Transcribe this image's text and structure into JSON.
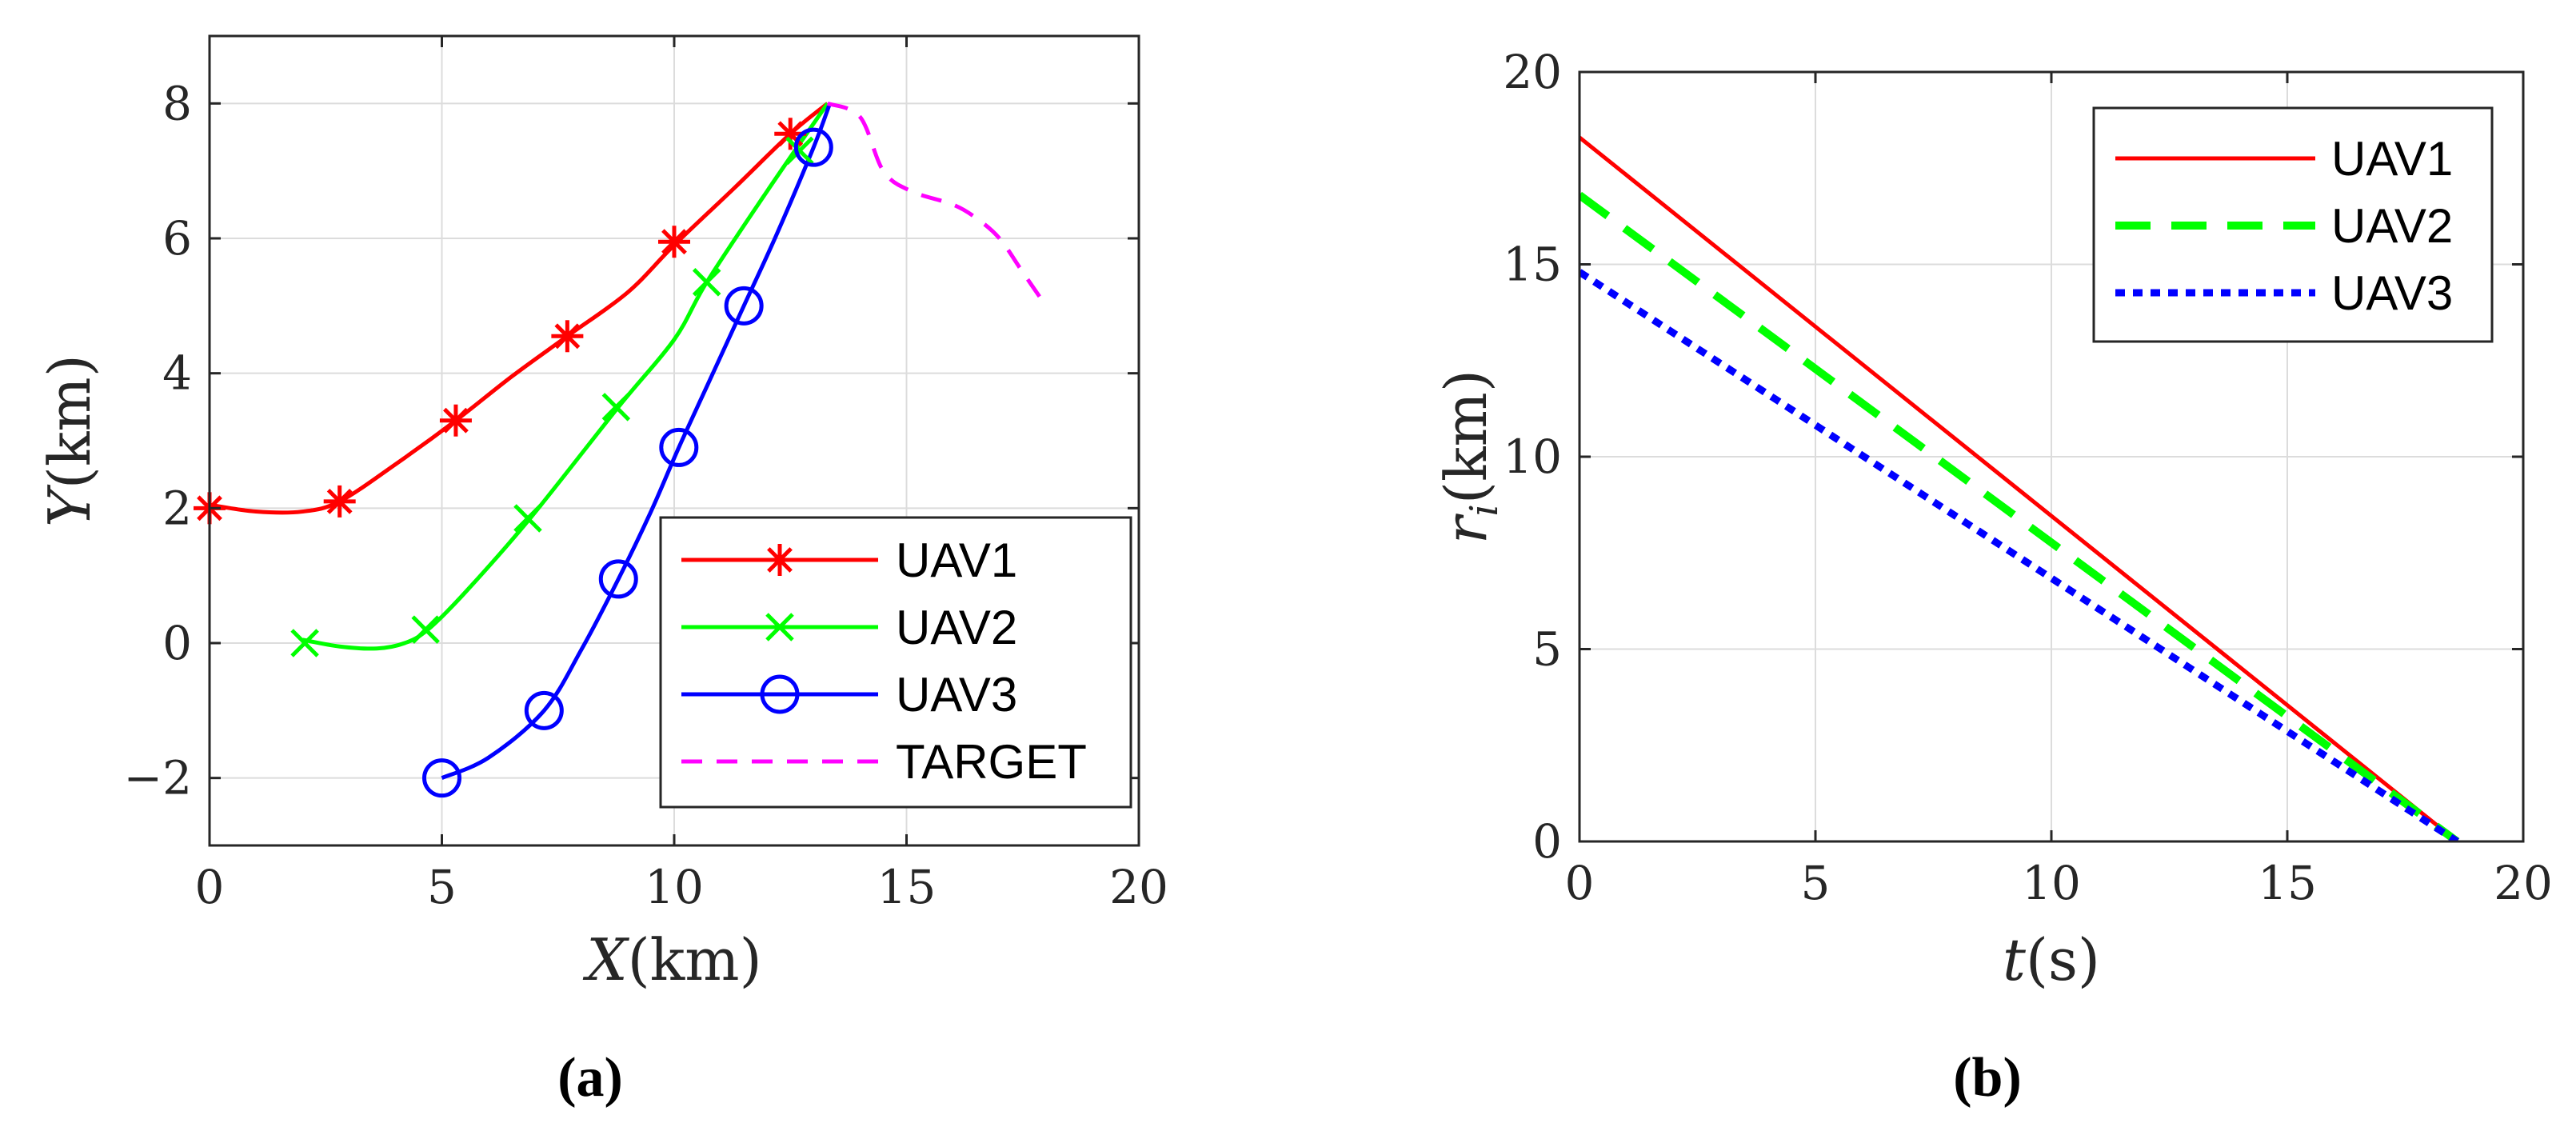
{
  "chart_data": [
    {
      "type": "line",
      "panel_label": "(a)",
      "xlabel": "X(km)",
      "ylabel": "Y(km)",
      "xlim": [
        0,
        20
      ],
      "ylim": [
        -3,
        9
      ],
      "xticks": [
        0,
        5,
        10,
        15,
        20
      ],
      "yticks": [
        -2,
        0,
        2,
        4,
        6,
        8
      ],
      "xtick_labels": [
        "0",
        "5",
        "10",
        "15",
        "20"
      ],
      "ytick_labels": [
        "−2",
        "0",
        "2",
        "4",
        "6",
        "8"
      ],
      "grid": true,
      "legend_position": "bottom-right",
      "series": [
        {
          "name": "UAV1",
          "color": "#ff0000",
          "style": "solid",
          "marker": "asterisk",
          "x": [
            0,
            1.0,
            2.0,
            2.8,
            4.0,
            5.3,
            6.5,
            7.7,
            9.0,
            10.0,
            11.3,
            12.5,
            13.3
          ],
          "y": [
            2.05,
            1.95,
            1.95,
            2.1,
            2.65,
            3.3,
            3.95,
            4.55,
            5.2,
            5.9,
            6.75,
            7.55,
            8.0
          ],
          "markers_x": [
            0,
            2.8,
            5.3,
            7.7,
            10.0,
            12.5
          ],
          "markers_y": [
            2.0,
            2.1,
            3.3,
            4.55,
            5.95,
            7.55
          ]
        },
        {
          "name": "UAV2",
          "color": "#00ff00",
          "style": "solid",
          "marker": "x",
          "x": [
            2.0,
            2.8,
            3.6,
            4.2,
            4.7,
            5.5,
            6.9,
            8.8,
            10.0,
            10.7,
            12.0,
            13.3
          ],
          "y": [
            0.05,
            -0.05,
            -0.08,
            0.0,
            0.2,
            0.75,
            1.85,
            3.5,
            4.5,
            5.35,
            6.7,
            8.0
          ],
          "markers_x": [
            2.05,
            4.65,
            6.85,
            8.75,
            10.7,
            12.7
          ],
          "markers_y": [
            0.0,
            0.2,
            1.85,
            3.5,
            5.35,
            7.3
          ]
        },
        {
          "name": "UAV3",
          "color": "#0000ff",
          "style": "solid",
          "marker": "circle",
          "x": [
            5.0,
            6.0,
            7.2,
            8.0,
            8.8,
            9.5,
            10.1,
            10.8,
            11.5,
            12.2,
            13.0,
            13.35
          ],
          "y": [
            -2.0,
            -1.7,
            -1.0,
            -0.1,
            0.95,
            1.95,
            2.9,
            3.95,
            5.0,
            6.05,
            7.35,
            8.0
          ],
          "markers_x": [
            5.0,
            7.2,
            8.8,
            10.1,
            11.5,
            13.0
          ],
          "markers_y": [
            -2.0,
            -1.0,
            0.95,
            2.9,
            5.0,
            7.35
          ]
        },
        {
          "name": "TARGET",
          "color": "#ff00ff",
          "style": "dashed",
          "marker": "none",
          "x": [
            13.3,
            14.0,
            14.5,
            15.1,
            16.0,
            16.5,
            17.0,
            17.5,
            18.0
          ],
          "y": [
            8.0,
            7.8,
            7.0,
            6.7,
            6.5,
            6.3,
            6.0,
            5.5,
            5.0
          ]
        }
      ]
    },
    {
      "type": "line",
      "panel_label": "(b)",
      "xlabel": "t(s)",
      "ylabel": "r_i(km)",
      "xlim": [
        0,
        20
      ],
      "ylim": [
        0,
        20
      ],
      "xticks": [
        0,
        5,
        10,
        15,
        20
      ],
      "yticks": [
        0,
        5,
        10,
        15,
        20
      ],
      "xtick_labels": [
        "0",
        "5",
        "10",
        "15",
        "20"
      ],
      "ytick_labels": [
        "0",
        "5",
        "10",
        "15",
        "20"
      ],
      "grid": true,
      "legend_position": "top-right",
      "series": [
        {
          "name": "UAV1",
          "color": "#ff0000",
          "style": "solid",
          "x": [
            0,
            18.6
          ],
          "y": [
            18.3,
            0
          ]
        },
        {
          "name": "UAV2",
          "color": "#00ff00",
          "style": "dashed",
          "x": [
            0,
            18.6
          ],
          "y": [
            16.8,
            0
          ]
        },
        {
          "name": "UAV3",
          "color": "#0000ff",
          "style": "dotted",
          "x": [
            0,
            18.6
          ],
          "y": [
            14.8,
            0
          ]
        }
      ]
    }
  ]
}
